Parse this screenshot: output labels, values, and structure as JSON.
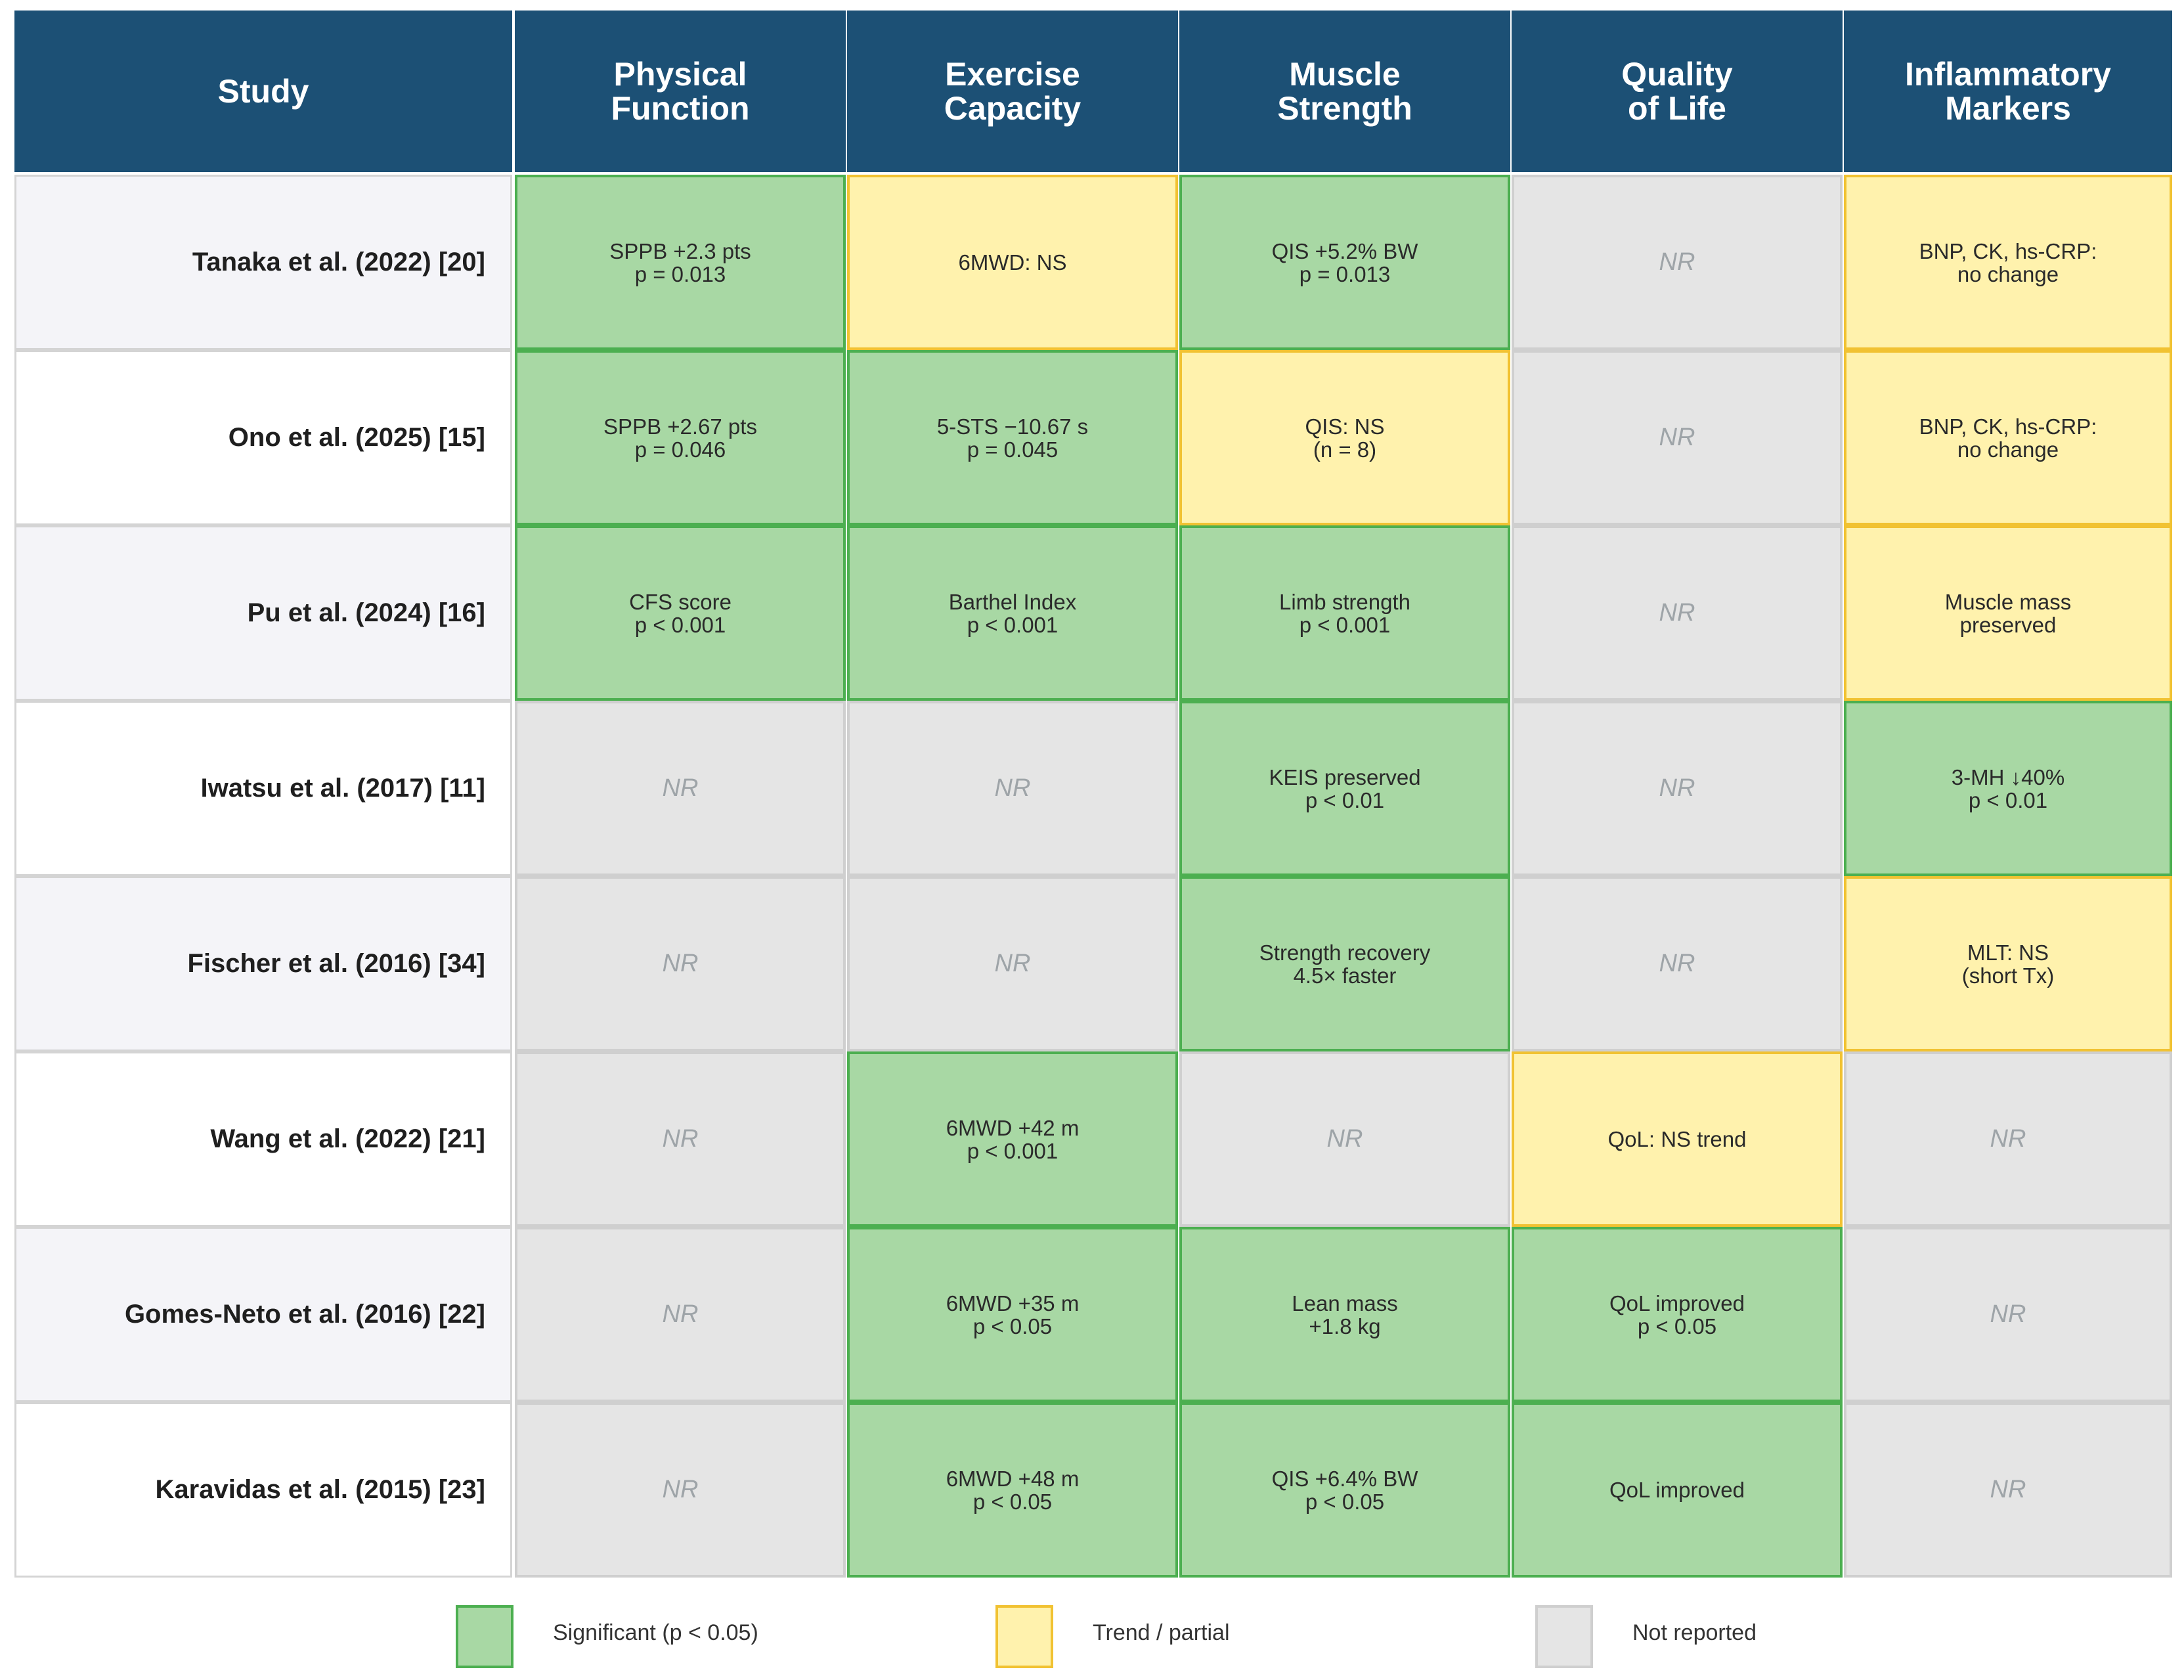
{
  "chart_data": {
    "type": "table",
    "columns": [
      "Study",
      "Physical\nFunction",
      "Exercise\nCapacity",
      "Muscle\nStrength",
      "Quality\nof Life",
      "Inflammatory\nMarkers"
    ],
    "rows": [
      {
        "study": "Tanaka et al. (2022) [20]",
        "cells": [
          {
            "text": "SPPB +2.3 pts\np = 0.013",
            "status": "sig"
          },
          {
            "text": "6MWD: NS",
            "status": "trend"
          },
          {
            "text": "QIS +5.2% BW\np = 0.013",
            "status": "sig"
          },
          {
            "text": "NR",
            "status": "nr"
          },
          {
            "text": "BNP, CK, hs-CRP:\nno change",
            "status": "trend"
          }
        ]
      },
      {
        "study": "Ono et al. (2025) [15]",
        "cells": [
          {
            "text": "SPPB +2.67 pts\np = 0.046",
            "status": "sig"
          },
          {
            "text": "5-STS −10.67 s\np = 0.045",
            "status": "sig"
          },
          {
            "text": "QIS: NS\n(n = 8)",
            "status": "trend"
          },
          {
            "text": "NR",
            "status": "nr"
          },
          {
            "text": "BNP, CK, hs-CRP:\nno change",
            "status": "trend"
          }
        ]
      },
      {
        "study": "Pu et al. (2024) [16]",
        "cells": [
          {
            "text": "CFS score\np < 0.001",
            "status": "sig"
          },
          {
            "text": "Barthel Index\np < 0.001",
            "status": "sig"
          },
          {
            "text": "Limb strength\np < 0.001",
            "status": "sig"
          },
          {
            "text": "NR",
            "status": "nr"
          },
          {
            "text": "Muscle mass\npreserved",
            "status": "trend"
          }
        ]
      },
      {
        "study": "Iwatsu et al. (2017) [11]",
        "cells": [
          {
            "text": "NR",
            "status": "nr"
          },
          {
            "text": "NR",
            "status": "nr"
          },
          {
            "text": "KEIS preserved\np < 0.01",
            "status": "sig"
          },
          {
            "text": "NR",
            "status": "nr"
          },
          {
            "text": "3-MH ↓40%\np < 0.01",
            "status": "sig"
          }
        ]
      },
      {
        "study": "Fischer et al. (2016) [34]",
        "cells": [
          {
            "text": "NR",
            "status": "nr"
          },
          {
            "text": "NR",
            "status": "nr"
          },
          {
            "text": "Strength recovery\n4.5× faster",
            "status": "sig"
          },
          {
            "text": "NR",
            "status": "nr"
          },
          {
            "text": "MLT: NS\n(short Tx)",
            "status": "trend"
          }
        ]
      },
      {
        "study": "Wang et al. (2022) [21]",
        "cells": [
          {
            "text": "NR",
            "status": "nr"
          },
          {
            "text": "6MWD +42 m\np < 0.001",
            "status": "sig"
          },
          {
            "text": "NR",
            "status": "nr"
          },
          {
            "text": "QoL: NS trend",
            "status": "trend"
          },
          {
            "text": "NR",
            "status": "nr"
          }
        ]
      },
      {
        "study": "Gomes-Neto et al. (2016) [22]",
        "cells": [
          {
            "text": "NR",
            "status": "nr"
          },
          {
            "text": "6MWD +35 m\np < 0.05",
            "status": "sig"
          },
          {
            "text": "Lean mass\n+1.8 kg",
            "status": "sig"
          },
          {
            "text": "QoL improved\np < 0.05",
            "status": "sig"
          },
          {
            "text": "NR",
            "status": "nr"
          }
        ]
      },
      {
        "study": "Karavidas et al. (2015) [23]",
        "cells": [
          {
            "text": "NR",
            "status": "nr"
          },
          {
            "text": "6MWD +48 m\np < 0.05",
            "status": "sig"
          },
          {
            "text": "QIS +6.4% BW\np < 0.05",
            "status": "sig"
          },
          {
            "text": "QoL improved",
            "status": "sig"
          },
          {
            "text": "NR",
            "status": "nr"
          }
        ]
      }
    ],
    "legend": [
      {
        "status": "sig",
        "label": "Significant (p < 0.05)"
      },
      {
        "status": "trend",
        "label": "Trend / partial"
      },
      {
        "status": "nr",
        "label": "Not reported"
      }
    ],
    "legend_placement": "bottom",
    "colors": {
      "header": "#1c5075",
      "sig_fill": "#a8d8a4",
      "sig_border": "#4caf50",
      "trend_fill": "#fff2ad",
      "trend_border": "#f1c232",
      "nr_fill": "#e5e5e5",
      "nr_border": "#cfcfcf"
    }
  }
}
